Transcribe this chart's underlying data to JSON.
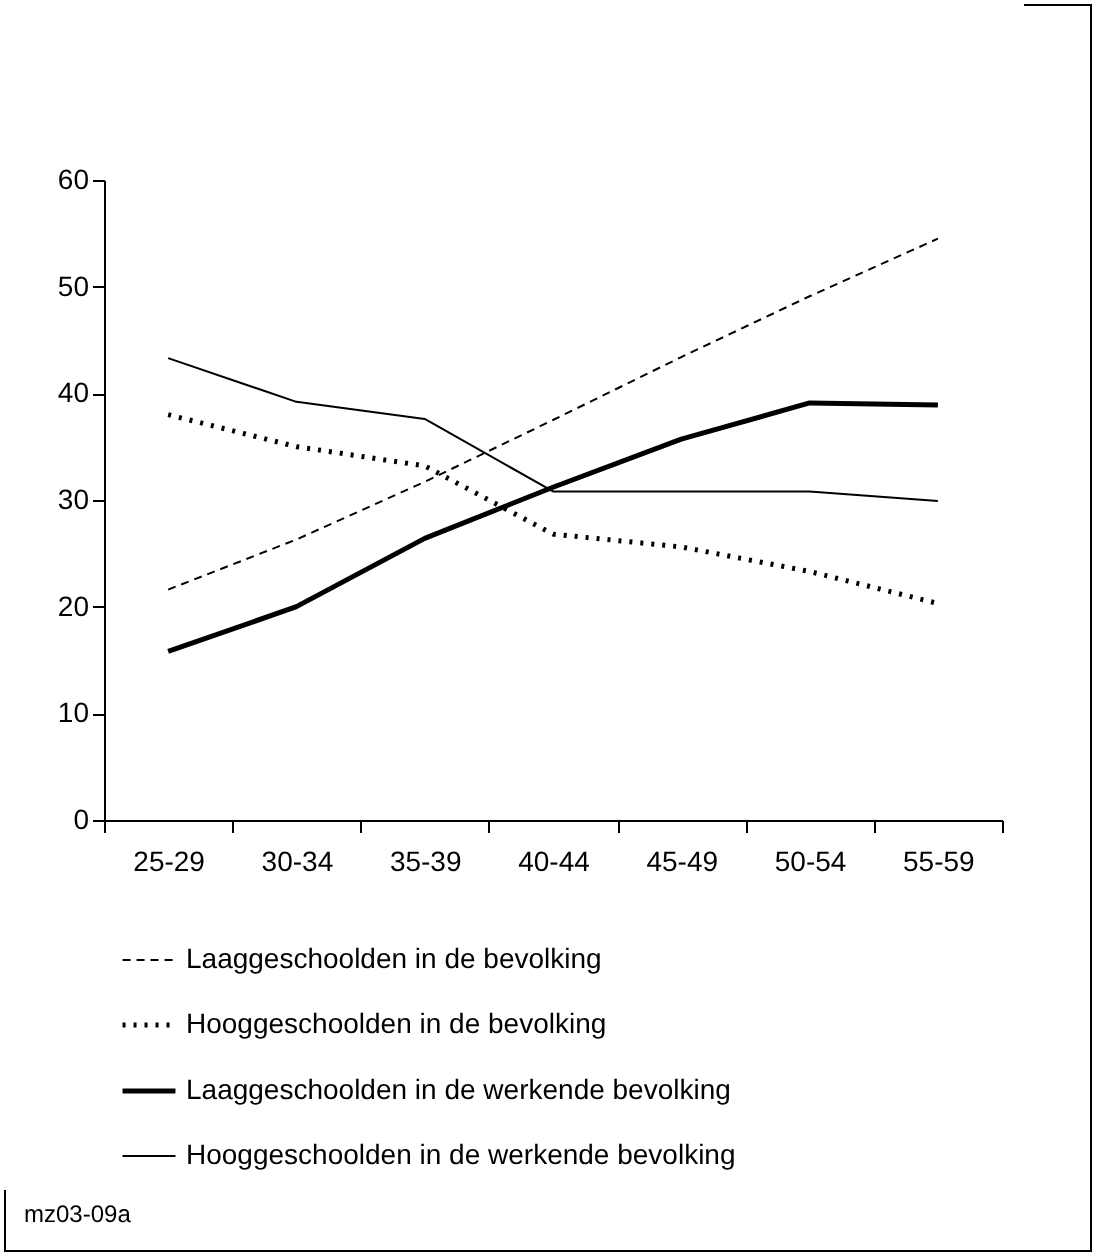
{
  "chart_data": {
    "type": "line",
    "categories": [
      "25-29",
      "30-34",
      "35-39",
      "40-44",
      "45-49",
      "50-54",
      "55-59"
    ],
    "ylim": [
      0,
      60
    ],
    "yticks": [
      0,
      10,
      20,
      30,
      40,
      50,
      60
    ],
    "grid": false,
    "legend": "bottom",
    "marker": "none",
    "series": [
      {
        "name": "Laaggeschoolden in de bevolking",
        "color": "#000000",
        "line_style": "dashed",
        "values": [
          21.6,
          26.3,
          31.7,
          37.5,
          43.4,
          49.1,
          54.5
        ]
      },
      {
        "name": "Hooggeschoolden in de bevolking",
        "color": "#000000",
        "line_style": "dotted",
        "values": [
          38.0,
          35.0,
          33.2,
          26.8,
          25.6,
          23.3,
          20.3
        ]
      },
      {
        "name": "Laaggeschoolden in de werkende bevolking",
        "color": "#000000",
        "line_style": "solid",
        "values": [
          15.8,
          20.0,
          26.4,
          31.2,
          35.7,
          39.1,
          38.9
        ]
      },
      {
        "name": "Hooggeschoolden in de werkende bevolking",
        "color": "#000000",
        "line_style": "solid",
        "values": [
          43.3,
          39.2,
          37.6,
          30.8,
          30.8,
          30.8,
          29.9
        ]
      }
    ],
    "annotations": [
      "mz03-09a"
    ]
  }
}
